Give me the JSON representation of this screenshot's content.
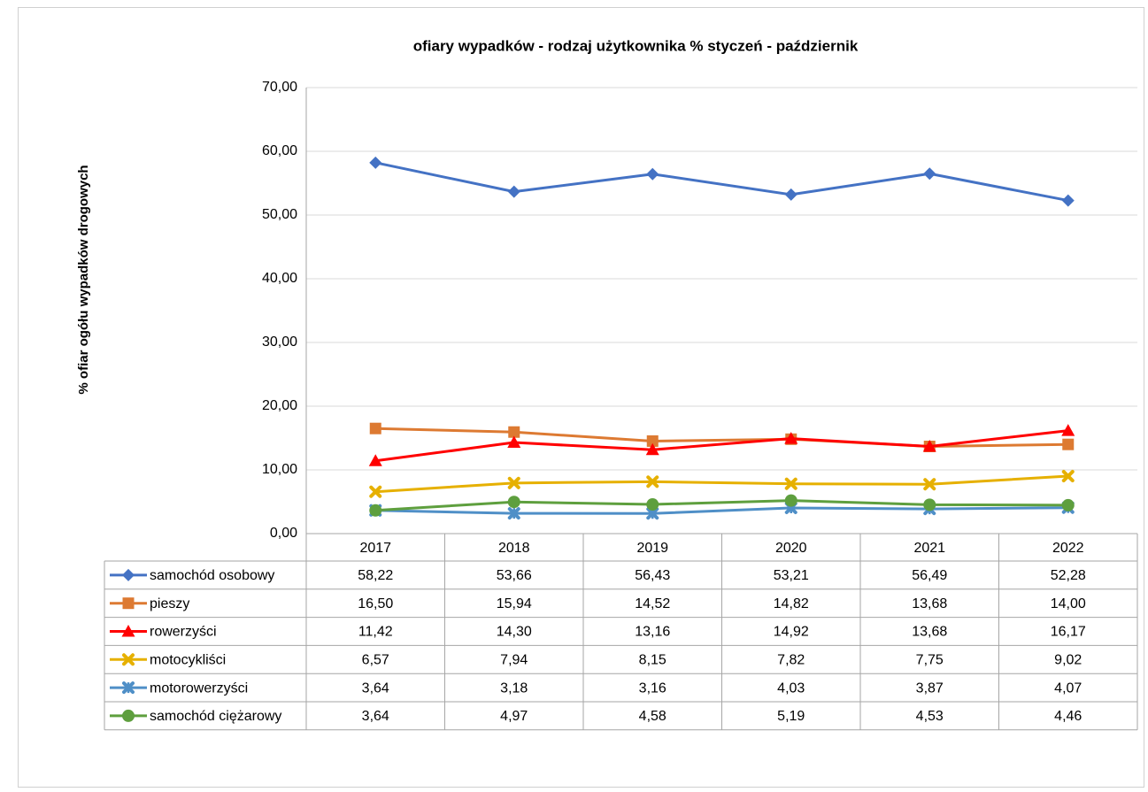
{
  "chart_data": {
    "type": "line",
    "title": "ofiary wypadków - rodzaj użytkownika % styczeń - październik",
    "y_label": "% ofiar ogółu wypadków drogowych",
    "categories": [
      "2017",
      "2018",
      "2019",
      "2020",
      "2021",
      "2022"
    ],
    "ylim": [
      0,
      70
    ],
    "yticks": [
      {
        "value": 0,
        "label": "0,00"
      },
      {
        "value": 10,
        "label": "10,00"
      },
      {
        "value": 20,
        "label": "20,00"
      },
      {
        "value": 30,
        "label": "30,00"
      },
      {
        "value": 40,
        "label": "40,00"
      },
      {
        "value": 50,
        "label": "50,00"
      },
      {
        "value": 60,
        "label": "60,00"
      },
      {
        "value": 70,
        "label": "70,00"
      }
    ],
    "grid": true,
    "data_table": true,
    "series": [
      {
        "name": "samochód osobowy",
        "color": "#4472c4",
        "marker": "diamond",
        "values": [
          58.22,
          53.66,
          56.43,
          53.21,
          56.49,
          52.28
        ],
        "value_labels": [
          "58,22",
          "53,66",
          "56,43",
          "53,21",
          "56,49",
          "52,28"
        ]
      },
      {
        "name": "pieszy",
        "color": "#dd7a32",
        "marker": "square",
        "values": [
          16.5,
          15.94,
          14.52,
          14.82,
          13.68,
          14.0
        ],
        "value_labels": [
          "16,50",
          "15,94",
          "14,52",
          "14,82",
          "13,68",
          "14,00"
        ]
      },
      {
        "name": "rowerzyści",
        "color": "#ff0000",
        "marker": "triangle",
        "values": [
          11.42,
          14.3,
          13.16,
          14.92,
          13.68,
          16.17
        ],
        "value_labels": [
          "11,42",
          "14,30",
          "13,16",
          "14,92",
          "13,68",
          "16,17"
        ]
      },
      {
        "name": "motocykliści",
        "color": "#e6b000",
        "marker": "x",
        "values": [
          6.57,
          7.94,
          8.15,
          7.82,
          7.75,
          9.02
        ],
        "value_labels": [
          "6,57",
          "7,94",
          "8,15",
          "7,82",
          "7,75",
          "9,02"
        ]
      },
      {
        "name": "motorowerzyści",
        "color": "#4f8fc7",
        "marker": "star",
        "values": [
          3.64,
          3.18,
          3.16,
          4.03,
          3.87,
          4.07
        ],
        "value_labels": [
          "3,64",
          "3,18",
          "3,16",
          "4,03",
          "3,87",
          "4,07"
        ]
      },
      {
        "name": "samochód ciężarowy",
        "color": "#5e9f3e",
        "marker": "circle",
        "values": [
          3.64,
          4.97,
          4.58,
          5.19,
          4.53,
          4.46
        ],
        "value_labels": [
          "3,64",
          "4,97",
          "4,58",
          "5,19",
          "4,53",
          "4,46"
        ]
      }
    ]
  }
}
